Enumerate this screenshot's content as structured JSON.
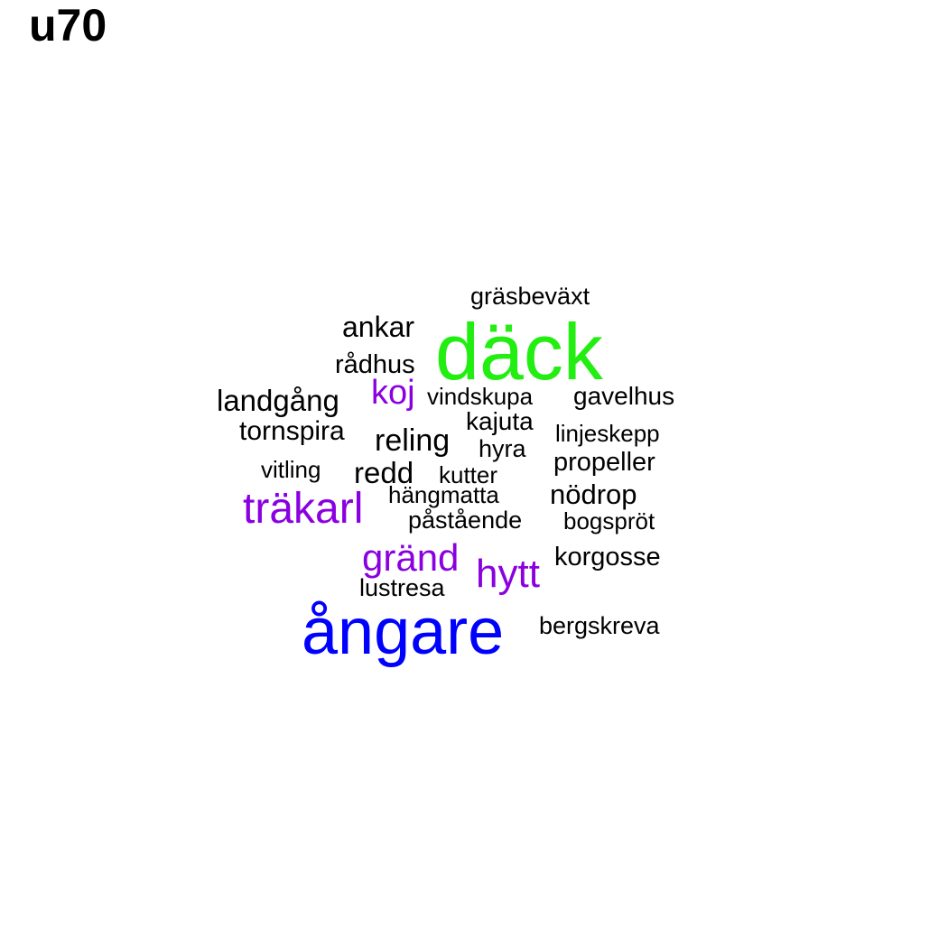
{
  "title": "u70",
  "colors": {
    "green": "#22ee11",
    "blue": "#0000ff",
    "purple": "#8a00e0",
    "black": "#000000"
  },
  "words": [
    {
      "text": "däck",
      "color": "green"
    },
    {
      "text": "ångare",
      "color": "blue"
    },
    {
      "text": "träkarl",
      "color": "purple"
    },
    {
      "text": "gränd",
      "color": "purple"
    },
    {
      "text": "hytt",
      "color": "purple"
    },
    {
      "text": "koj",
      "color": "purple"
    },
    {
      "text": "gräsbeväxt",
      "color": "black"
    },
    {
      "text": "ankar",
      "color": "black"
    },
    {
      "text": "rådhus",
      "color": "black"
    },
    {
      "text": "landgång",
      "color": "black"
    },
    {
      "text": "vindskupa",
      "color": "black"
    },
    {
      "text": "gavelhus",
      "color": "black"
    },
    {
      "text": "kajuta",
      "color": "black"
    },
    {
      "text": "tornspira",
      "color": "black"
    },
    {
      "text": "reling",
      "color": "black"
    },
    {
      "text": "linjeskepp",
      "color": "black"
    },
    {
      "text": "hyra",
      "color": "black"
    },
    {
      "text": "vitling",
      "color": "black"
    },
    {
      "text": "redd",
      "color": "black"
    },
    {
      "text": "kutter",
      "color": "black"
    },
    {
      "text": "propeller",
      "color": "black"
    },
    {
      "text": "hängmatta",
      "color": "black"
    },
    {
      "text": "nödrop",
      "color": "black"
    },
    {
      "text": "påstående",
      "color": "black"
    },
    {
      "text": "bogspröt",
      "color": "black"
    },
    {
      "text": "korgosse",
      "color": "black"
    },
    {
      "text": "lustresa",
      "color": "black"
    },
    {
      "text": "bergskreva",
      "color": "black"
    }
  ]
}
